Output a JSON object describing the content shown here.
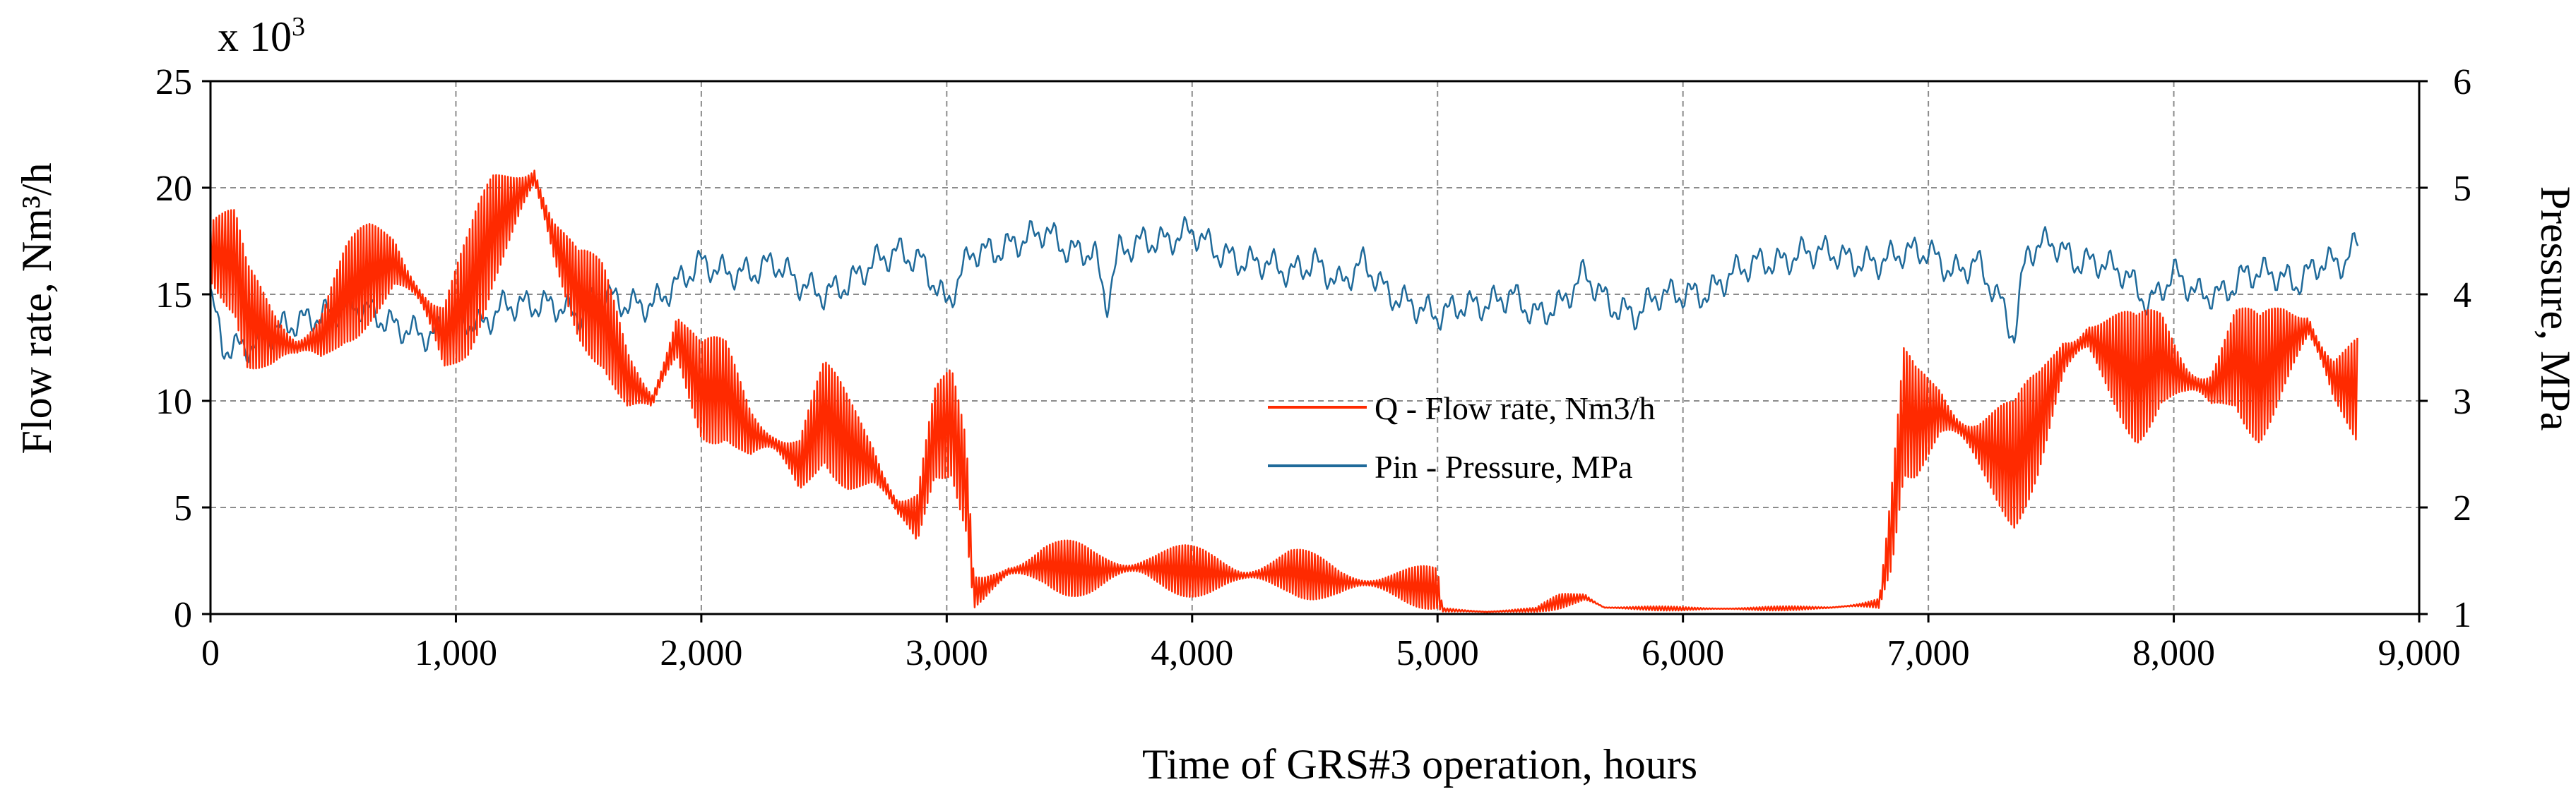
{
  "chart_data": {
    "type": "line",
    "multiplier_label": "x 10",
    "multiplier_exp": "3",
    "xlabel": "Time of GRS#3 operation, hours",
    "ylabel_left": "Flow rate, Nm³/h",
    "ylabel_right": "Pressure, MPa",
    "xlim": [
      0,
      9000
    ],
    "ylim_left": [
      0,
      25
    ],
    "ylim_right": [
      1,
      6
    ],
    "x_ticks": [
      0,
      1000,
      2000,
      3000,
      4000,
      5000,
      6000,
      7000,
      8000,
      9000
    ],
    "x_tick_labels": [
      "0",
      "1,000",
      "2,000",
      "3,000",
      "4,000",
      "5,000",
      "6,000",
      "7,000",
      "8,000",
      "9,000"
    ],
    "y_left_ticks": [
      0,
      5,
      10,
      15,
      20,
      25
    ],
    "y_left_tick_labels": [
      "0",
      "5",
      "10",
      "15",
      "20",
      "25"
    ],
    "y_right_ticks": [
      1,
      2,
      3,
      4,
      5,
      6
    ],
    "y_right_tick_labels": [
      "1",
      "2",
      "3",
      "4",
      "5",
      "6"
    ],
    "grid": true,
    "legend_position": "center-right",
    "series": [
      {
        "name": "Q - Flow rate, Nm3/h",
        "axis": "left",
        "color": "#ff2a00",
        "x": [
          0,
          100,
          150,
          250,
          350,
          450,
          550,
          650,
          750,
          850,
          950,
          1050,
          1150,
          1250,
          1320,
          1400,
          1500,
          1600,
          1700,
          1800,
          1900,
          2000,
          2100,
          2200,
          2300,
          2400,
          2500,
          2600,
          2700,
          2800,
          2880,
          2950,
          3020,
          3080,
          3110,
          3150,
          3250,
          3400,
          3600,
          3800,
          4000,
          4200,
          4400,
          4600,
          4800,
          5000,
          5020,
          5200,
          5400,
          5500,
          5600,
          5680,
          5700,
          6000,
          6300,
          6600,
          6800,
          6850,
          6900,
          6950,
          7050,
          7200,
          7350,
          7450,
          7550,
          7650,
          7750,
          7850,
          7950,
          8050,
          8150,
          8250,
          8350,
          8450,
          8550,
          8650,
          8750
        ],
        "values": [
          17.0,
          16.5,
          14.0,
          13.0,
          12.5,
          13.0,
          15.0,
          16.0,
          16.5,
          15.0,
          13.0,
          15.0,
          18.0,
          19.5,
          20.5,
          17.5,
          15.0,
          14.0,
          11.0,
          10.0,
          13.0,
          10.5,
          10.5,
          8.5,
          8.0,
          7.0,
          9.5,
          8.0,
          7.0,
          5.0,
          4.5,
          8.5,
          9.0,
          6.0,
          1.0,
          1.2,
          2.0,
          2.3,
          2.0,
          2.2,
          2.0,
          1.8,
          2.0,
          1.5,
          1.4,
          1.2,
          0.2,
          0.1,
          0.2,
          0.6,
          0.8,
          0.3,
          0.3,
          0.25,
          0.25,
          0.3,
          0.5,
          4.0,
          9.5,
          9.0,
          9.5,
          8.0,
          7.0,
          9.0,
          12.0,
          13.0,
          12.0,
          11.0,
          12.0,
          11.0,
          10.5,
          12.0,
          11.0,
          12.5,
          13.5,
          11.0,
          10.5
        ],
        "amplitude": [
          2.5,
          2.5,
          2.5,
          2.5,
          2.5,
          2.5,
          2.5,
          2.5,
          2.5,
          2.5,
          3.0,
          3.0,
          3.0,
          3.0,
          3.0,
          3.0,
          2.5,
          2.5,
          2.5,
          2.5,
          2.5,
          2.5,
          2.5,
          2.5,
          2.5,
          2.5,
          2.5,
          2.5,
          2.5,
          2.5,
          2.5,
          2.5,
          2.5,
          2.5,
          1.0,
          1.0,
          1.3,
          1.3,
          1.3,
          1.3,
          1.2,
          1.2,
          1.2,
          1.0,
          1.0,
          1.0,
          0.1,
          0.1,
          0.1,
          0.4,
          0.4,
          0.1,
          0.1,
          0.1,
          0.1,
          0.1,
          0.3,
          2.0,
          3.0,
          3.0,
          3.0,
          3.0,
          3.0,
          3.0,
          3.0,
          3.0,
          3.0,
          3.0,
          3.0,
          3.0,
          3.0,
          3.0,
          3.0,
          3.0,
          3.0,
          3.0,
          3.0
        ]
      },
      {
        "name": "Pin - Pressure, MPa",
        "axis": "right",
        "color": "#1f6a9a",
        "x": [
          0,
          50,
          150,
          300,
          450,
          600,
          750,
          900,
          1000,
          1100,
          1200,
          1300,
          1400,
          1500,
          1600,
          1700,
          1800,
          1900,
          2000,
          2100,
          2200,
          2300,
          2400,
          2500,
          2600,
          2700,
          2800,
          2900,
          3000,
          3100,
          3200,
          3300,
          3400,
          3500,
          3600,
          3650,
          3700,
          3800,
          3900,
          4000,
          4100,
          4200,
          4300,
          4400,
          4500,
          4600,
          4700,
          4800,
          4900,
          5000,
          5100,
          5200,
          5300,
          5400,
          5500,
          5600,
          5700,
          5800,
          5900,
          6000,
          6100,
          6200,
          6300,
          6400,
          6500,
          6600,
          6700,
          6800,
          6900,
          7000,
          7100,
          7200,
          7300,
          7350,
          7400,
          7500,
          7600,
          7700,
          7800,
          7900,
          8000,
          8100,
          8200,
          8300,
          8400,
          8500,
          8600,
          8700,
          8750
        ],
        "values": [
          4.0,
          3.5,
          3.5,
          3.7,
          3.8,
          3.9,
          3.7,
          3.6,
          3.8,
          3.7,
          3.9,
          3.9,
          3.9,
          3.8,
          4.0,
          3.9,
          3.9,
          4.1,
          4.3,
          4.2,
          4.2,
          4.3,
          4.1,
          4.0,
          4.1,
          4.3,
          4.4,
          4.3,
          3.9,
          4.4,
          4.4,
          4.5,
          4.6,
          4.4,
          4.4,
          3.9,
          4.4,
          4.5,
          4.5,
          4.6,
          4.4,
          4.3,
          4.3,
          4.2,
          4.3,
          4.1,
          4.3,
          4.0,
          3.9,
          3.8,
          3.9,
          3.9,
          4.0,
          3.8,
          3.9,
          4.2,
          3.9,
          3.8,
          4.0,
          4.0,
          4.0,
          4.2,
          4.3,
          4.3,
          4.4,
          4.4,
          4.3,
          4.3,
          4.4,
          4.4,
          4.2,
          4.3,
          3.9,
          3.6,
          4.4,
          4.5,
          4.3,
          4.3,
          4.2,
          3.9,
          4.2,
          4.0,
          4.0,
          4.2,
          4.2,
          4.1,
          4.3,
          4.3,
          4.5
        ],
        "amplitude": [
          0.1,
          0.1,
          0.1,
          0.1,
          0.1,
          0.1,
          0.1,
          0.1,
          0.1,
          0.1,
          0.1,
          0.1,
          0.1,
          0.1,
          0.1,
          0.1,
          0.1,
          0.1,
          0.1,
          0.1,
          0.1,
          0.1,
          0.1,
          0.1,
          0.1,
          0.1,
          0.1,
          0.1,
          0.1,
          0.1,
          0.1,
          0.1,
          0.1,
          0.1,
          0.1,
          0.1,
          0.1,
          0.1,
          0.1,
          0.1,
          0.1,
          0.1,
          0.1,
          0.1,
          0.1,
          0.1,
          0.1,
          0.1,
          0.1,
          0.1,
          0.1,
          0.1,
          0.1,
          0.1,
          0.1,
          0.1,
          0.1,
          0.1,
          0.1,
          0.1,
          0.1,
          0.1,
          0.1,
          0.1,
          0.1,
          0.1,
          0.1,
          0.1,
          0.1,
          0.1,
          0.1,
          0.1,
          0.1,
          0.1,
          0.1,
          0.1,
          0.1,
          0.1,
          0.1,
          0.1,
          0.1,
          0.1,
          0.1,
          0.1,
          0.1,
          0.1,
          0.1,
          0.1,
          0.1
        ]
      }
    ]
  }
}
